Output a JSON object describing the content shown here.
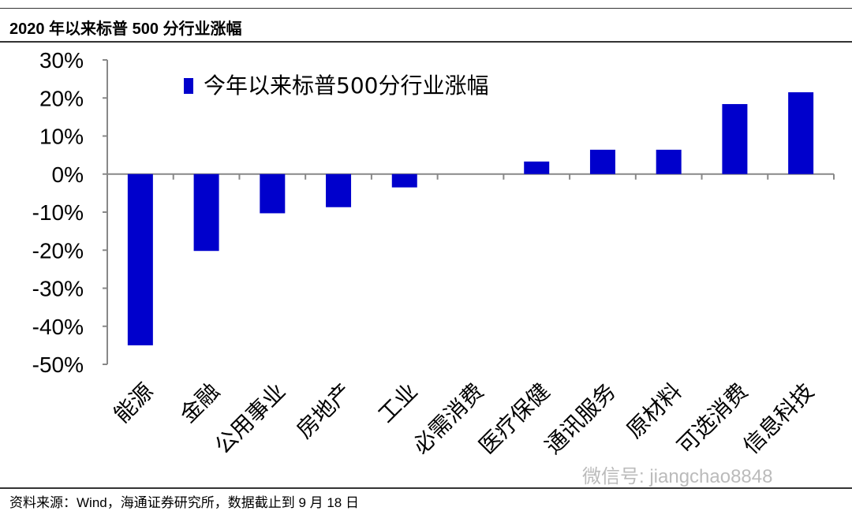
{
  "header": {
    "title": "2020 年以来标普 500 分行业涨幅"
  },
  "footer": {
    "source": "资料来源：Wind，海通证券研究所，数据截止到 9 月 18 日"
  },
  "watermark": "微信号: jiangchao8848",
  "chart_data": {
    "type": "bar",
    "title": "",
    "categories": [
      "能源",
      "金融",
      "公用事业",
      "房地产",
      "工业",
      "必需消费",
      "医疗保健",
      "通讯服务",
      "原材料",
      "可选消费",
      "信息科技"
    ],
    "series": [
      {
        "name": "今年以来标普500分行业涨幅",
        "values": [
          -45,
          -20.2,
          -10.3,
          -8.7,
          -3.5,
          0,
          3.3,
          6.4,
          6.4,
          18.4,
          21.5
        ],
        "color": "#0000CC"
      }
    ],
    "ylim": [
      -50,
      30
    ],
    "yticks": [
      "-50%",
      "-40%",
      "-30%",
      "-20%",
      "-10%",
      "0%",
      "10%",
      "20%",
      "30%"
    ],
    "legend": "top-left",
    "grid": false
  }
}
